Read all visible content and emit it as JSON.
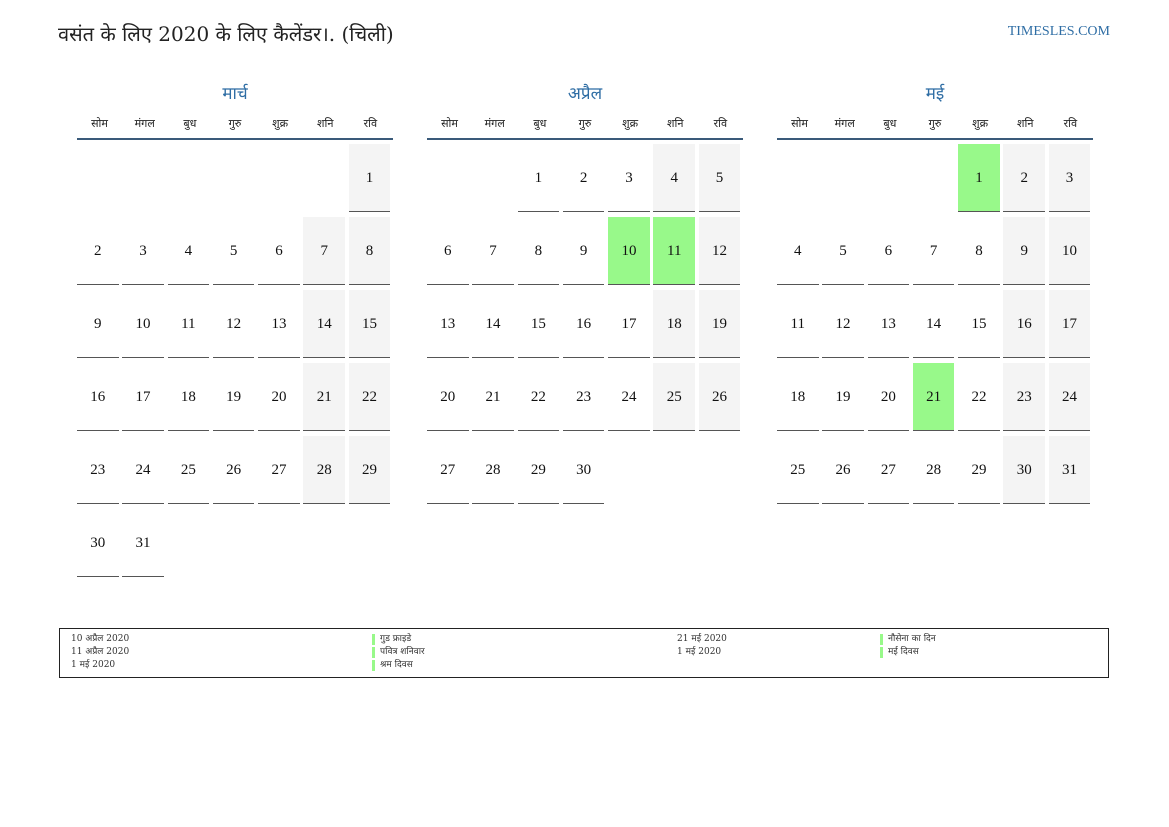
{
  "header": {
    "title": "वसंत के लिए 2020 के लिए कैलेंडर।. (चिली)",
    "site": "TIMESLES.COM"
  },
  "weekdays": [
    "सोम",
    "मंगल",
    "बुध",
    "गुरु",
    "शुक्र",
    "शनि",
    "रवि"
  ],
  "months": [
    {
      "name": "मार्च",
      "offset": 6,
      "days": 31,
      "holidays": []
    },
    {
      "name": "अप्रैल",
      "offset": 2,
      "days": 30,
      "holidays": [
        10,
        11
      ]
    },
    {
      "name": "मई",
      "offset": 4,
      "days": 31,
      "holidays": [
        1,
        21
      ]
    }
  ],
  "legend": {
    "left": [
      {
        "date": "10 अप्रैल 2020",
        "name": "गुड फ्राइडे"
      },
      {
        "date": "11 अप्रैल 2020",
        "name": "पवित्र शनिवार"
      },
      {
        "date": "1 मई 2020",
        "name": "श्रम दिवस"
      }
    ],
    "right": [
      {
        "date": "21 मई 2020",
        "name": "नौसेना का दिन"
      },
      {
        "date": "1 मई 2020",
        "name": "मई दिवस"
      }
    ]
  },
  "colors": {
    "accent": "#2e6da4",
    "holiday": "#98f98a",
    "weekend": "#f4f4f4"
  }
}
